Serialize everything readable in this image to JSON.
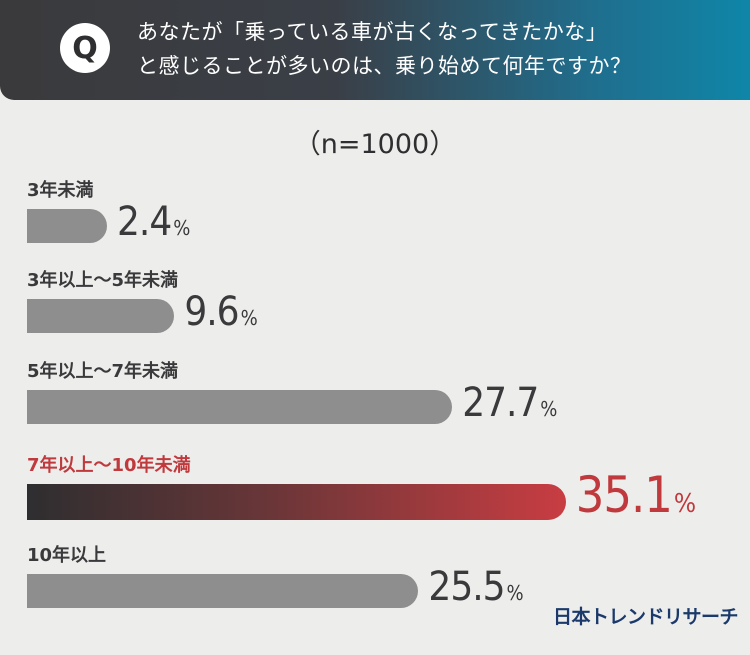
{
  "header": {
    "q_mark": "Q",
    "question_line1": "あなたが「乗っている車が古くなってきたかな」",
    "question_line2": "と感じることが多いのは、乗り始めて何年ですか？"
  },
  "sample_size": "（n=1000）",
  "chart_data": {
    "type": "bar",
    "orientation": "horizontal",
    "categories": [
      "3年未満",
      "3年以上〜5年未満",
      "5年以上〜7年未満",
      "7年以上〜10年未満",
      "10年以上"
    ],
    "values": [
      2.4,
      9.6,
      27.7,
      35.1,
      25.5
    ],
    "value_labels": [
      "2.4",
      "9.6",
      "27.7",
      "35.1",
      "25.5"
    ],
    "unit": "%",
    "highlight_index": 3,
    "colors": {
      "bar": "#8f8e8e",
      "highlight_start": "#2e2e30",
      "highlight_end": "#c83d42",
      "highlight_text": "#c0393d"
    }
  },
  "brand": "日本トレンドリサーチ"
}
